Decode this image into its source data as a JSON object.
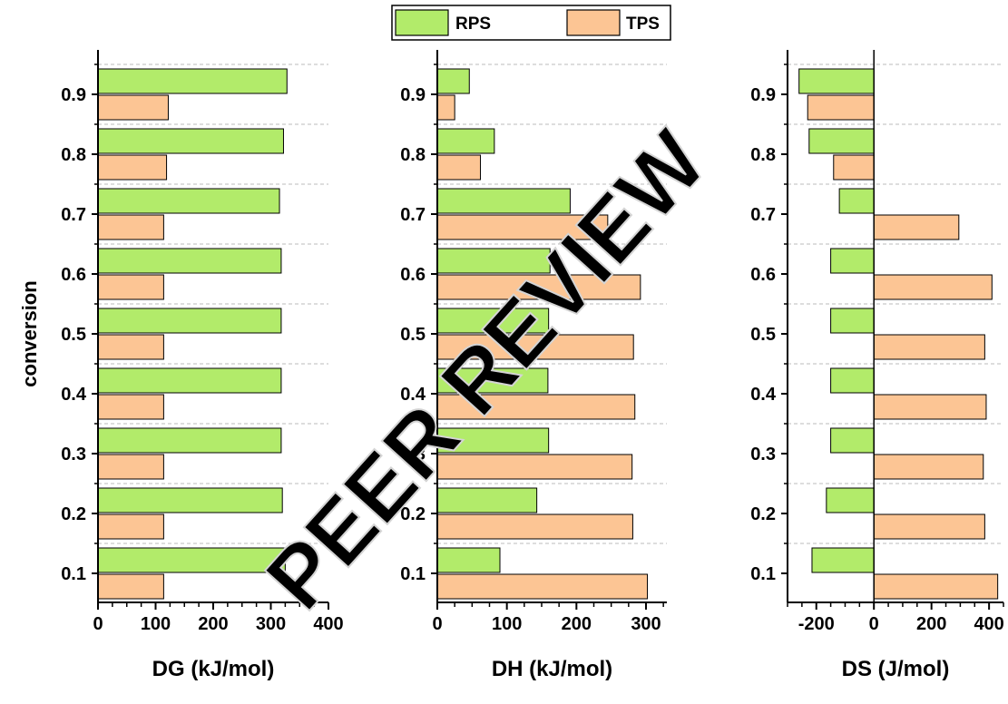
{
  "chart_data": {
    "type": "bar",
    "orientation": "horizontal",
    "legend": {
      "position": "top",
      "entries": [
        {
          "label": "RPS",
          "color": "#B2EB6A"
        },
        {
          "label": "TPS",
          "color": "#FCC594"
        }
      ]
    },
    "watermark": "PEER REVIEW",
    "shared_ylabel": "conversion",
    "categories": [
      "0.1",
      "0.2",
      "0.3",
      "0.4",
      "0.5",
      "0.6",
      "0.7",
      "0.8",
      "0.9"
    ],
    "panels": [
      {
        "xlabel": "DG (kJ/mol)",
        "xlim": [
          0,
          400
        ],
        "xticks": [
          0,
          100,
          200,
          300,
          400
        ],
        "series": [
          {
            "name": "RPS",
            "color": "#B2EB6A",
            "values": [
              325,
              320,
              318,
              318,
              318,
              318,
              315,
              322,
              328
            ]
          },
          {
            "name": "TPS",
            "color": "#FCC594",
            "values": [
              114,
              114,
              114,
              114,
              114,
              114,
              114,
              119,
              122
            ]
          }
        ]
      },
      {
        "xlabel": "DH (kJ/mol)",
        "xlim": [
          0,
          330
        ],
        "xticks": [
          0,
          100,
          200,
          300
        ],
        "series": [
          {
            "name": "RPS",
            "color": "#B2EB6A",
            "values": [
              90,
              143,
              160,
              159,
              160,
              162,
              191,
              82,
              46
            ]
          },
          {
            "name": "TPS",
            "color": "#FCC594",
            "values": [
              302,
              281,
              280,
              284,
              282,
              292,
              245,
              62,
              25
            ]
          }
        ]
      },
      {
        "xlabel": "DS (J/mol)",
        "xlim": [
          -300,
          450
        ],
        "xticks": [
          -200,
          0,
          200,
          400
        ],
        "series": [
          {
            "name": "RPS",
            "color": "#B2EB6A",
            "values": [
              -215,
              -165,
              -150,
              -150,
              -150,
              -150,
              -120,
              -225,
              -260
            ]
          },
          {
            "name": "TPS",
            "color": "#FCC594",
            "values": [
              430,
              385,
              380,
              390,
              385,
              410,
              295,
              -140,
              -230
            ]
          }
        ]
      }
    ]
  }
}
